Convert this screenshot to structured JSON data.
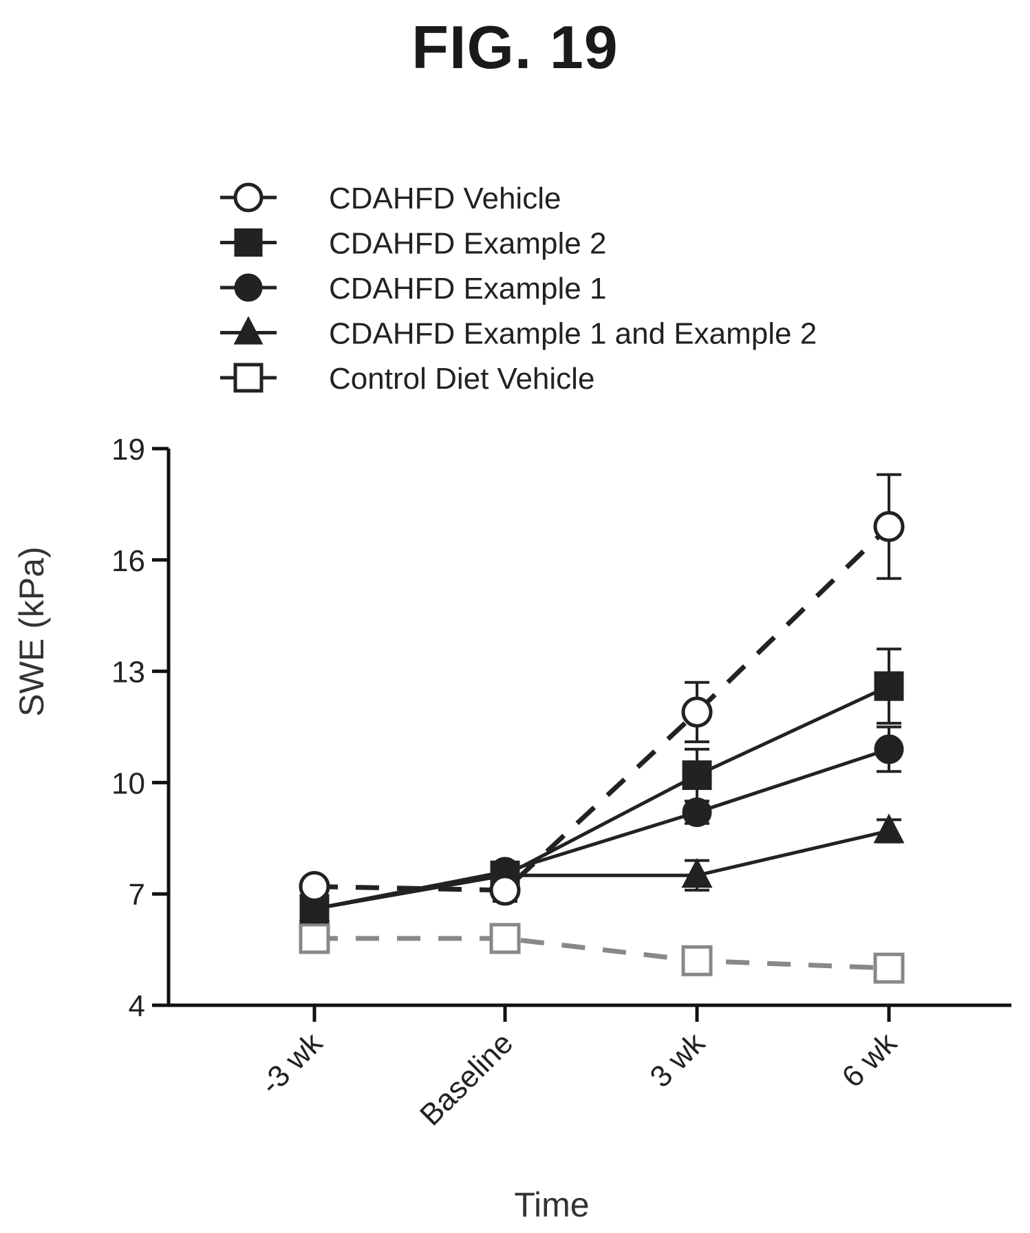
{
  "figure": {
    "title": "FIG. 19"
  },
  "chart_data": {
    "type": "line",
    "title": "",
    "xlabel": "Time",
    "ylabel": "SWE (kPa)",
    "categories": [
      "-3 wk",
      "Baseline",
      "3 wk",
      "6 wk"
    ],
    "ylim": [
      4,
      19
    ],
    "yticks": [
      4,
      7,
      10,
      13,
      16,
      19
    ],
    "grid": false,
    "legend_position": "top",
    "series": [
      {
        "name": "CDAHFD Vehicle",
        "marker": "circle-open",
        "line": "dashed",
        "color": "#222222",
        "values": [
          7.2,
          7.1,
          11.9,
          16.9
        ],
        "errors": [
          0.0,
          0.3,
          0.8,
          1.4
        ]
      },
      {
        "name": "CDAHFD Example 2",
        "marker": "square-filled",
        "line": "solid",
        "color": "#222222",
        "values": [
          6.6,
          7.5,
          10.2,
          12.6
        ],
        "errors": [
          0.0,
          0.2,
          0.7,
          1.0
        ]
      },
      {
        "name": "CDAHFD Example 1",
        "marker": "circle-filled",
        "line": "solid",
        "color": "#222222",
        "values": [
          6.6,
          7.6,
          9.2,
          10.9
        ],
        "errors": [
          0.0,
          0.2,
          0.3,
          0.6
        ]
      },
      {
        "name": "CDAHFD Example 1 and Example 2",
        "marker": "triangle-filled",
        "line": "solid",
        "color": "#222222",
        "values": [
          6.6,
          7.5,
          7.5,
          8.7
        ],
        "errors": [
          0.0,
          0.2,
          0.4,
          0.3
        ]
      },
      {
        "name": "Control Diet Vehicle",
        "marker": "square-open",
        "line": "dashed",
        "color": "#888888",
        "values": [
          5.8,
          5.8,
          5.2,
          5.0
        ],
        "errors": [
          0.0,
          0.0,
          0.0,
          0.0
        ]
      }
    ]
  }
}
